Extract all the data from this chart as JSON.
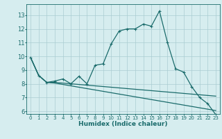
{
  "xlabel": "Humidex (Indice chaleur)",
  "bg_color": "#d6edef",
  "grid_color": "#aacdd2",
  "line_color": "#1a6b6b",
  "xlim": [
    -0.5,
    23.5
  ],
  "ylim": [
    5.8,
    13.8
  ],
  "xticks": [
    0,
    1,
    2,
    3,
    4,
    5,
    6,
    7,
    8,
    9,
    10,
    11,
    12,
    13,
    14,
    15,
    16,
    17,
    18,
    19,
    20,
    21,
    22,
    23
  ],
  "yticks": [
    6,
    7,
    8,
    9,
    10,
    11,
    12,
    13
  ],
  "line1_x": [
    0,
    1,
    2,
    3,
    4,
    5,
    6,
    7,
    8,
    9,
    10,
    11,
    12,
    13,
    14,
    15,
    16,
    17,
    18,
    19,
    20,
    21,
    22,
    23
  ],
  "line1_y": [
    9.9,
    8.6,
    8.1,
    8.2,
    8.35,
    8.0,
    8.55,
    8.0,
    9.35,
    9.45,
    10.9,
    11.85,
    12.0,
    12.0,
    12.35,
    12.2,
    13.3,
    11.0,
    9.1,
    8.85,
    7.8,
    7.0,
    6.55,
    5.75
  ],
  "line2_x": [
    0,
    1,
    2,
    3,
    4,
    5,
    6,
    7,
    8,
    9,
    10,
    11,
    12,
    13,
    14,
    15,
    16,
    17,
    18,
    19,
    20,
    21,
    22,
    23
  ],
  "line2_y": [
    9.9,
    8.6,
    8.1,
    8.1,
    8.05,
    8.0,
    7.95,
    7.9,
    7.85,
    7.8,
    7.75,
    7.7,
    7.65,
    7.6,
    7.55,
    7.5,
    7.45,
    7.4,
    7.35,
    7.3,
    7.25,
    7.2,
    7.15,
    7.1
  ],
  "line3_x": [
    0,
    1,
    2,
    3,
    4,
    5,
    6,
    7,
    8,
    9,
    10,
    11,
    12,
    13,
    14,
    15,
    16,
    17,
    18,
    19,
    20,
    21,
    22,
    23
  ],
  "line3_y": [
    9.9,
    8.6,
    8.1,
    8.05,
    7.95,
    7.85,
    7.75,
    7.65,
    7.55,
    7.45,
    7.35,
    7.25,
    7.15,
    7.05,
    6.95,
    6.85,
    6.75,
    6.65,
    6.55,
    6.45,
    6.35,
    6.25,
    6.15,
    6.05
  ],
  "markersize": 3.5,
  "linewidth": 0.9
}
